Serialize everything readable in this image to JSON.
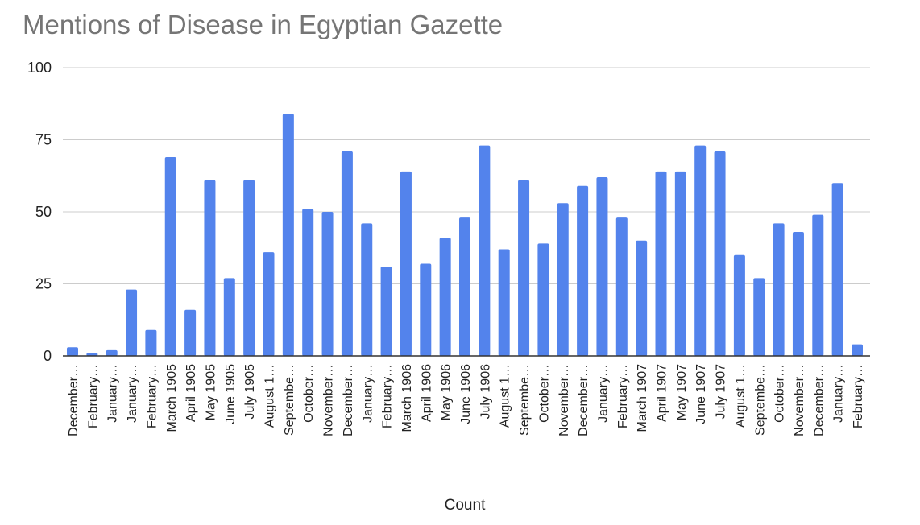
{
  "chart_data": {
    "type": "bar",
    "title": "Mentions of Disease in Egyptian Gazette",
    "xlabel": "Count",
    "ylabel": "",
    "ylim": [
      0,
      100
    ],
    "yticks": [
      "0",
      "25",
      "50",
      "75",
      "100"
    ],
    "grid": true,
    "legend": "none",
    "bar_color": "#5383ec",
    "categories": [
      "December…",
      "February…",
      "January…",
      "January…",
      "February…",
      "March 1905",
      "April 1905",
      "May 1905",
      "June 1905",
      "July 1905",
      "August 1…",
      "Septembe…",
      "October…",
      "November…",
      "December…",
      "January…",
      "February…",
      "March 1906",
      "April 1906",
      "May 1906",
      "June 1906",
      "July 1906",
      "August 1…",
      "Septembe…",
      "October…",
      "November…",
      "December…",
      "January…",
      "February…",
      "March 1907",
      "April 1907",
      "May 1907",
      "June 1907",
      "July 1907",
      "August 1…",
      "Septembe…",
      "October…",
      "November…",
      "December…",
      "January…",
      "February…"
    ],
    "values": [
      3,
      1,
      2,
      23,
      9,
      69,
      16,
      61,
      27,
      61,
      36,
      84,
      51,
      50,
      71,
      46,
      31,
      64,
      32,
      41,
      48,
      73,
      37,
      61,
      39,
      53,
      59,
      62,
      48,
      40,
      64,
      64,
      73,
      71,
      35,
      27,
      46,
      43,
      49,
      60,
      4
    ]
  }
}
